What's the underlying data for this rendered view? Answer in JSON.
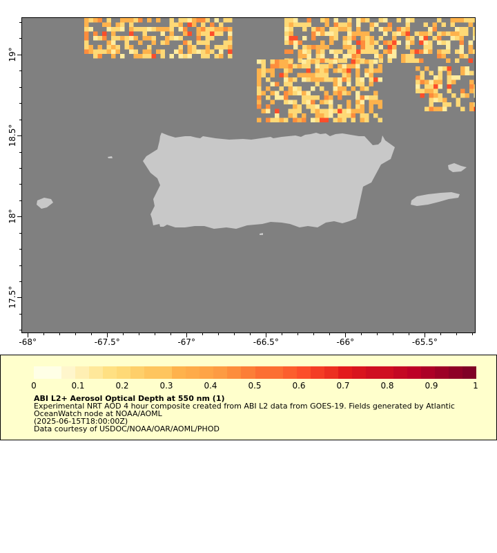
{
  "map": {
    "x_ticks": [
      {
        "label": "-68°",
        "lon": -68.0
      },
      {
        "label": "-67.5°",
        "lon": -67.5
      },
      {
        "label": "-67°",
        "lon": -67.0
      },
      {
        "label": "-66.5°",
        "lon": -66.5
      },
      {
        "label": "-66°",
        "lon": -66.0
      },
      {
        "label": "-65.5°",
        "lon": -65.5
      }
    ],
    "y_ticks": [
      {
        "label": "19°",
        "lat": 19.0
      },
      {
        "label": "18.5°",
        "lat": 18.5
      },
      {
        "label": "18°",
        "lat": 18.0
      },
      {
        "label": "17.5°",
        "lat": 17.5
      }
    ],
    "lon_range": [
      -68.04,
      -65.18
    ],
    "lat_range": [
      17.28,
      19.23
    ],
    "colors": {
      "ocean": "#808080",
      "land": "#c8c8c8",
      "no_data": "#808080"
    }
  },
  "legend": {
    "colorbar_labels": [
      "0",
      "0.1",
      "0.2",
      "0.3",
      "0.4",
      "0.5",
      "0.6",
      "0.7",
      "0.8",
      "0.9",
      "1"
    ],
    "colorbar_range": [
      0,
      1
    ],
    "colormap": [
      "#ffffcc",
      "#ffeda0",
      "#fed976",
      "#feb24c",
      "#fd8d3c",
      "#fc4e2a",
      "#e31a1c",
      "#bd0026",
      "#800026"
    ],
    "title": "ABI L2+ Aerosol Optical Depth at 550 nm (1)",
    "description": "Experimental NRT AOD 4 hour composite created from ABI L2 data from GOES-19. Fields generated by Atlantic OceanWatch node at NOAA/AOML",
    "timestamp": "(2025-06-15T18:00:00Z)",
    "credit": "Data courtesy of USDOC/NOAA/OAR/AOML/PHOD"
  }
}
